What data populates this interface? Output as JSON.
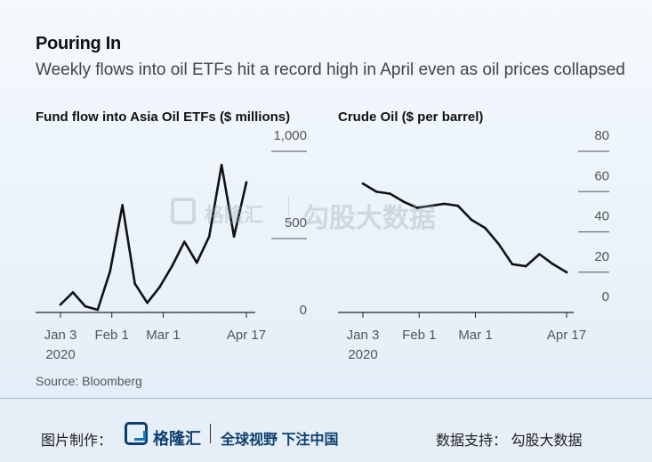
{
  "header": {
    "title": "Pouring In",
    "subtitle": "Weekly flows into oil ETFs hit a record high in April even as oil prices collapsed"
  },
  "source": "Source: Bloomberg",
  "chart_data": [
    {
      "type": "line",
      "title": "Fund flow into Asia Oil ETFs ($ millions)",
      "x": [
        "2020-01-03",
        "2020-01-10",
        "2020-01-17",
        "2020-01-24",
        "2020-01-31",
        "2020-02-07",
        "2020-02-14",
        "2020-02-21",
        "2020-02-28",
        "2020-03-06",
        "2020-03-13",
        "2020-03-20",
        "2020-03-27",
        "2020-04-03",
        "2020-04-10",
        "2020-04-17"
      ],
      "values": [
        30,
        100,
        20,
        0,
        220,
        600,
        150,
        40,
        130,
        250,
        390,
        270,
        420,
        830,
        420,
        730
      ],
      "xticks": [
        "Jan 3\n2020",
        "Feb 1",
        "Mar 1",
        "Apr 17"
      ],
      "yticks": [
        "1,000",
        "500",
        "0"
      ],
      "ylim": [
        0,
        1000
      ],
      "color": "#111111"
    },
    {
      "type": "line",
      "title": "Crude Oil ($ per barrel)",
      "x": [
        "2020-01-03",
        "2020-01-10",
        "2020-01-17",
        "2020-01-24",
        "2020-01-31",
        "2020-02-07",
        "2020-02-14",
        "2020-02-21",
        "2020-02-28",
        "2020-03-06",
        "2020-03-13",
        "2020-03-20",
        "2020-03-27",
        "2020-04-03",
        "2020-04-10",
        "2020-04-17"
      ],
      "values": [
        56,
        52,
        51,
        47,
        44,
        45,
        46,
        45,
        38,
        34,
        26,
        16,
        15,
        21,
        16,
        12
      ],
      "xticks": [
        "Jan 3\n2020",
        "Feb 1",
        "Mar 1",
        "Apr 17"
      ],
      "yticks": [
        "80",
        "60",
        "40",
        "20",
        "0"
      ],
      "ylim": [
        0,
        80
      ],
      "color": "#111111"
    }
  ],
  "watermark": {
    "brand": "格隆汇",
    "slogan": "勾股大数据"
  },
  "footer": {
    "made_by": "图片制作：",
    "brand": "格隆汇",
    "slogan": "全球视野 下注中国",
    "data_support": "数据支持：  勾股大数据"
  }
}
